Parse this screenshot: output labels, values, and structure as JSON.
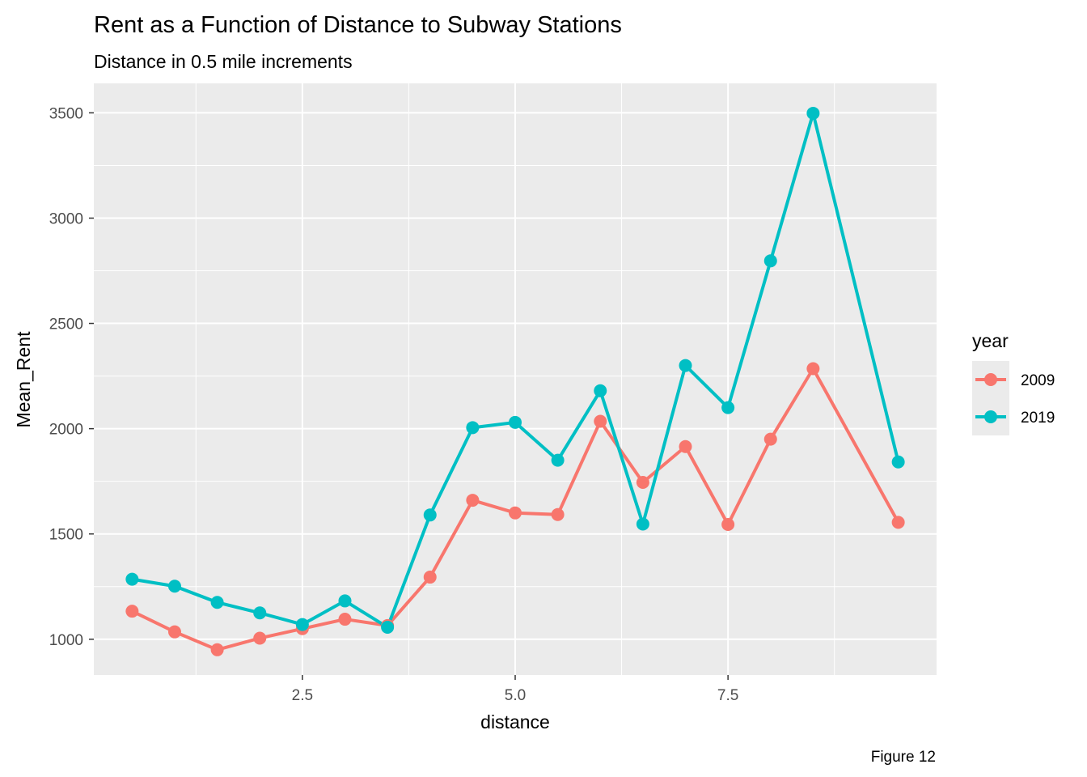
{
  "chart_data": {
    "type": "line",
    "title": "Rent as a Function of Distance to Subway Stations",
    "subtitle": "Distance in 0.5 mile increments",
    "xlabel": "distance",
    "ylabel": "Mean_Rent",
    "caption": "Figure 12",
    "xlim": [
      0.05,
      9.95
    ],
    "ylim": [
      830,
      3640
    ],
    "x_ticks": [
      2.5,
      5.0,
      7.5
    ],
    "x_tick_labels": [
      "2.5",
      "5.0",
      "7.5"
    ],
    "y_ticks": [
      1000,
      1500,
      2000,
      2500,
      3000,
      3500
    ],
    "y_tick_labels": [
      "1000",
      "1500",
      "2000",
      "2500",
      "3000",
      "3500"
    ],
    "grid": true,
    "legend": {
      "title": "year",
      "placement": "right"
    },
    "series": [
      {
        "name": "2009",
        "color": "#F8766D",
        "x": [
          0.5,
          1.0,
          1.5,
          2.0,
          2.5,
          3.0,
          3.5,
          4.0,
          4.5,
          5.0,
          5.5,
          6.0,
          6.5,
          7.0,
          7.5,
          8.0,
          8.5,
          9.5
        ],
        "y": [
          1133,
          1035,
          950,
          1005,
          1050,
          1095,
          1065,
          1295,
          1660,
          1600,
          1592,
          2035,
          1745,
          1915,
          1545,
          1950,
          2285,
          1555
        ]
      },
      {
        "name": "2019",
        "color": "#00BFC4",
        "x": [
          0.5,
          1.0,
          1.5,
          2.0,
          2.5,
          3.0,
          3.5,
          4.0,
          4.5,
          5.0,
          5.5,
          6.0,
          6.5,
          7.0,
          7.5,
          8.0,
          8.5,
          9.5
        ],
        "y": [
          1285,
          1252,
          1175,
          1125,
          1070,
          1182,
          1057,
          1590,
          2005,
          2030,
          1850,
          2180,
          1547,
          2300,
          2100,
          2797,
          3498,
          1842
        ]
      }
    ]
  }
}
